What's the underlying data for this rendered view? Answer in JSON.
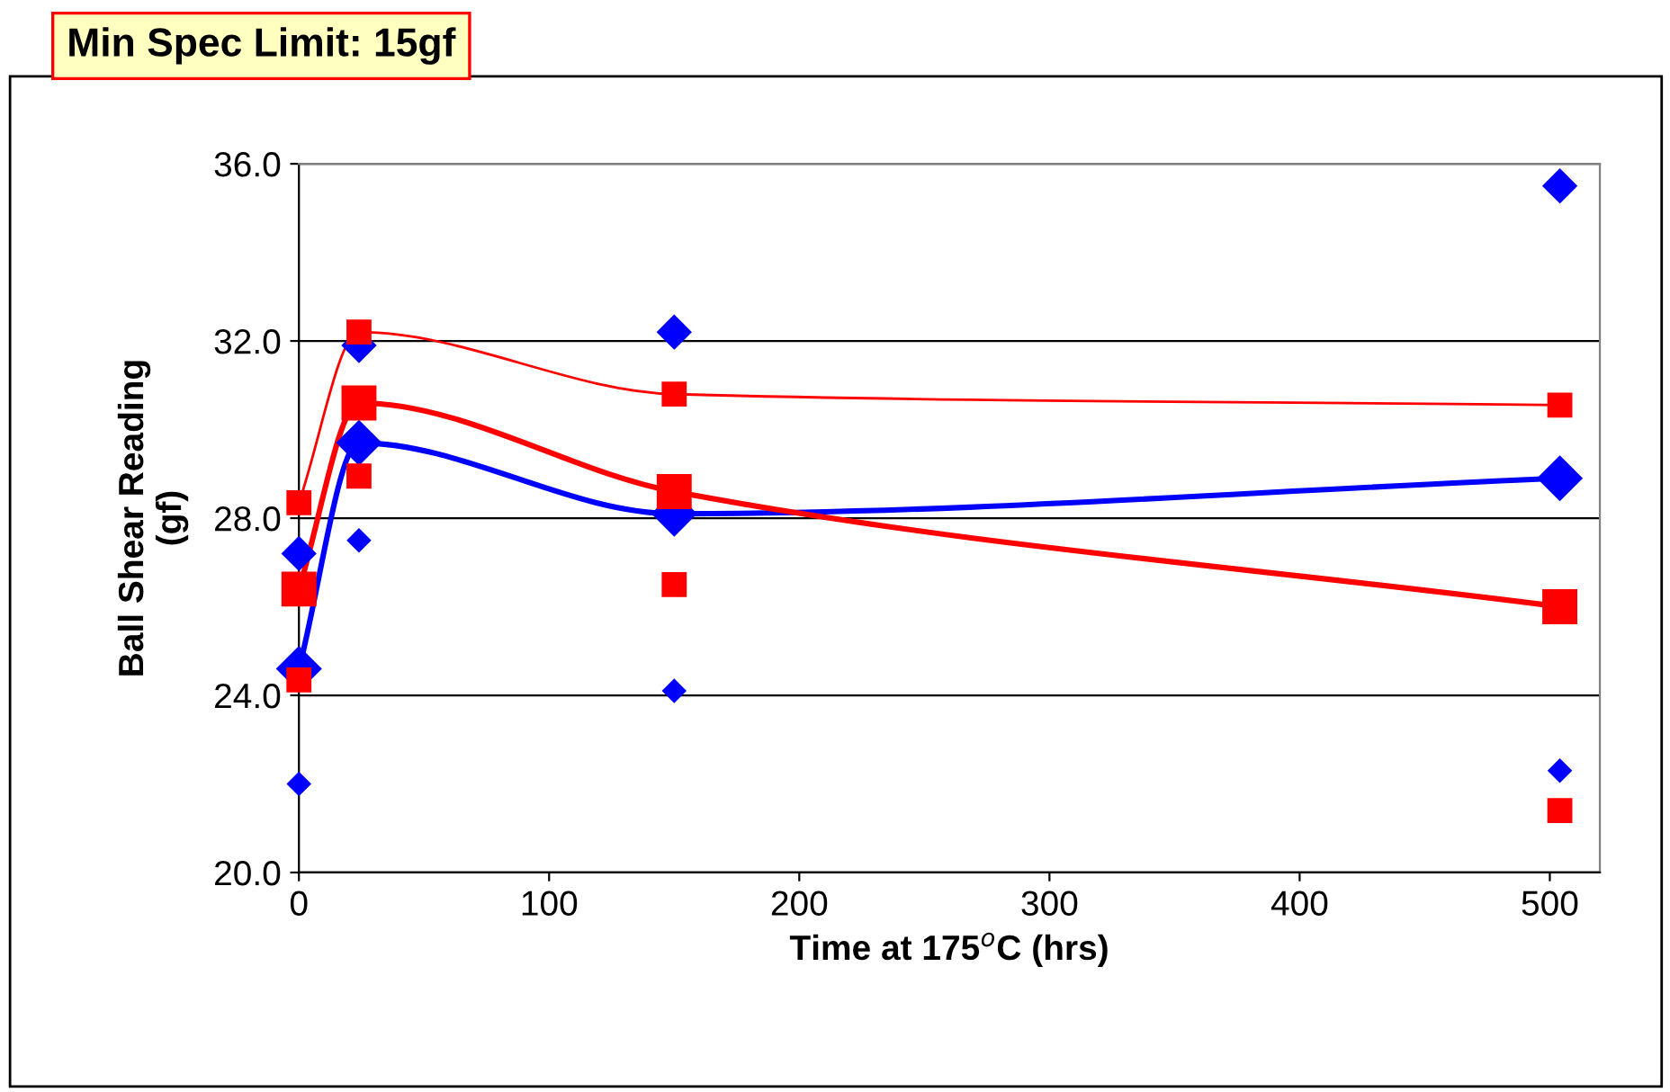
{
  "chart_data": {
    "type": "line",
    "xlabel": "Time at 175$^{o}$C (hrs)",
    "ylabel": "Ball Shear Reading\n(gf)",
    "annotations": [
      "Min Spec Limit: 15gf"
    ],
    "x": [
      0,
      24,
      150,
      504
    ],
    "series": [
      {
        "type": "scatter",
        "color": "#0000ff",
        "marker": "diamond",
        "values": [
          27.2,
          31.9,
          32.2,
          35.5
        ]
      },
      {
        "type": "scatter",
        "color": "#0000ff",
        "marker": "diamond",
        "values": [
          22.0,
          27.5,
          24.1,
          22.3
        ]
      },
      {
        "color": "#0000ff",
        "marker": "diamond",
        "values": [
          24.6,
          29.7,
          28.1,
          28.9
        ]
      },
      {
        "color": "#ff0000",
        "marker": "square",
        "values": [
          28.35,
          32.2,
          30.8,
          30.55
        ]
      },
      {
        "type": "scatter",
        "color": "#ff0000",
        "marker": "square",
        "values": [
          24.35,
          28.95,
          26.5,
          21.4
        ]
      },
      {
        "color": "#ff0000",
        "marker": "square",
        "values": [
          26.4,
          30.6,
          28.6,
          26.0
        ]
      }
    ],
    "xlim": [
      0,
      520
    ],
    "xticks": [
      0,
      100,
      200,
      300,
      400,
      500
    ],
    "ylim": [
      20,
      36
    ],
    "yticks": [
      {
        "value": 20,
        "label": "20.0"
      },
      {
        "value": 24,
        "label": "24.0"
      },
      {
        "value": 28,
        "label": "28.0"
      },
      {
        "value": 32,
        "label": "32.0"
      },
      {
        "value": 36,
        "label": "36.0"
      }
    ],
    "grid": "y",
    "legend": false
  }
}
